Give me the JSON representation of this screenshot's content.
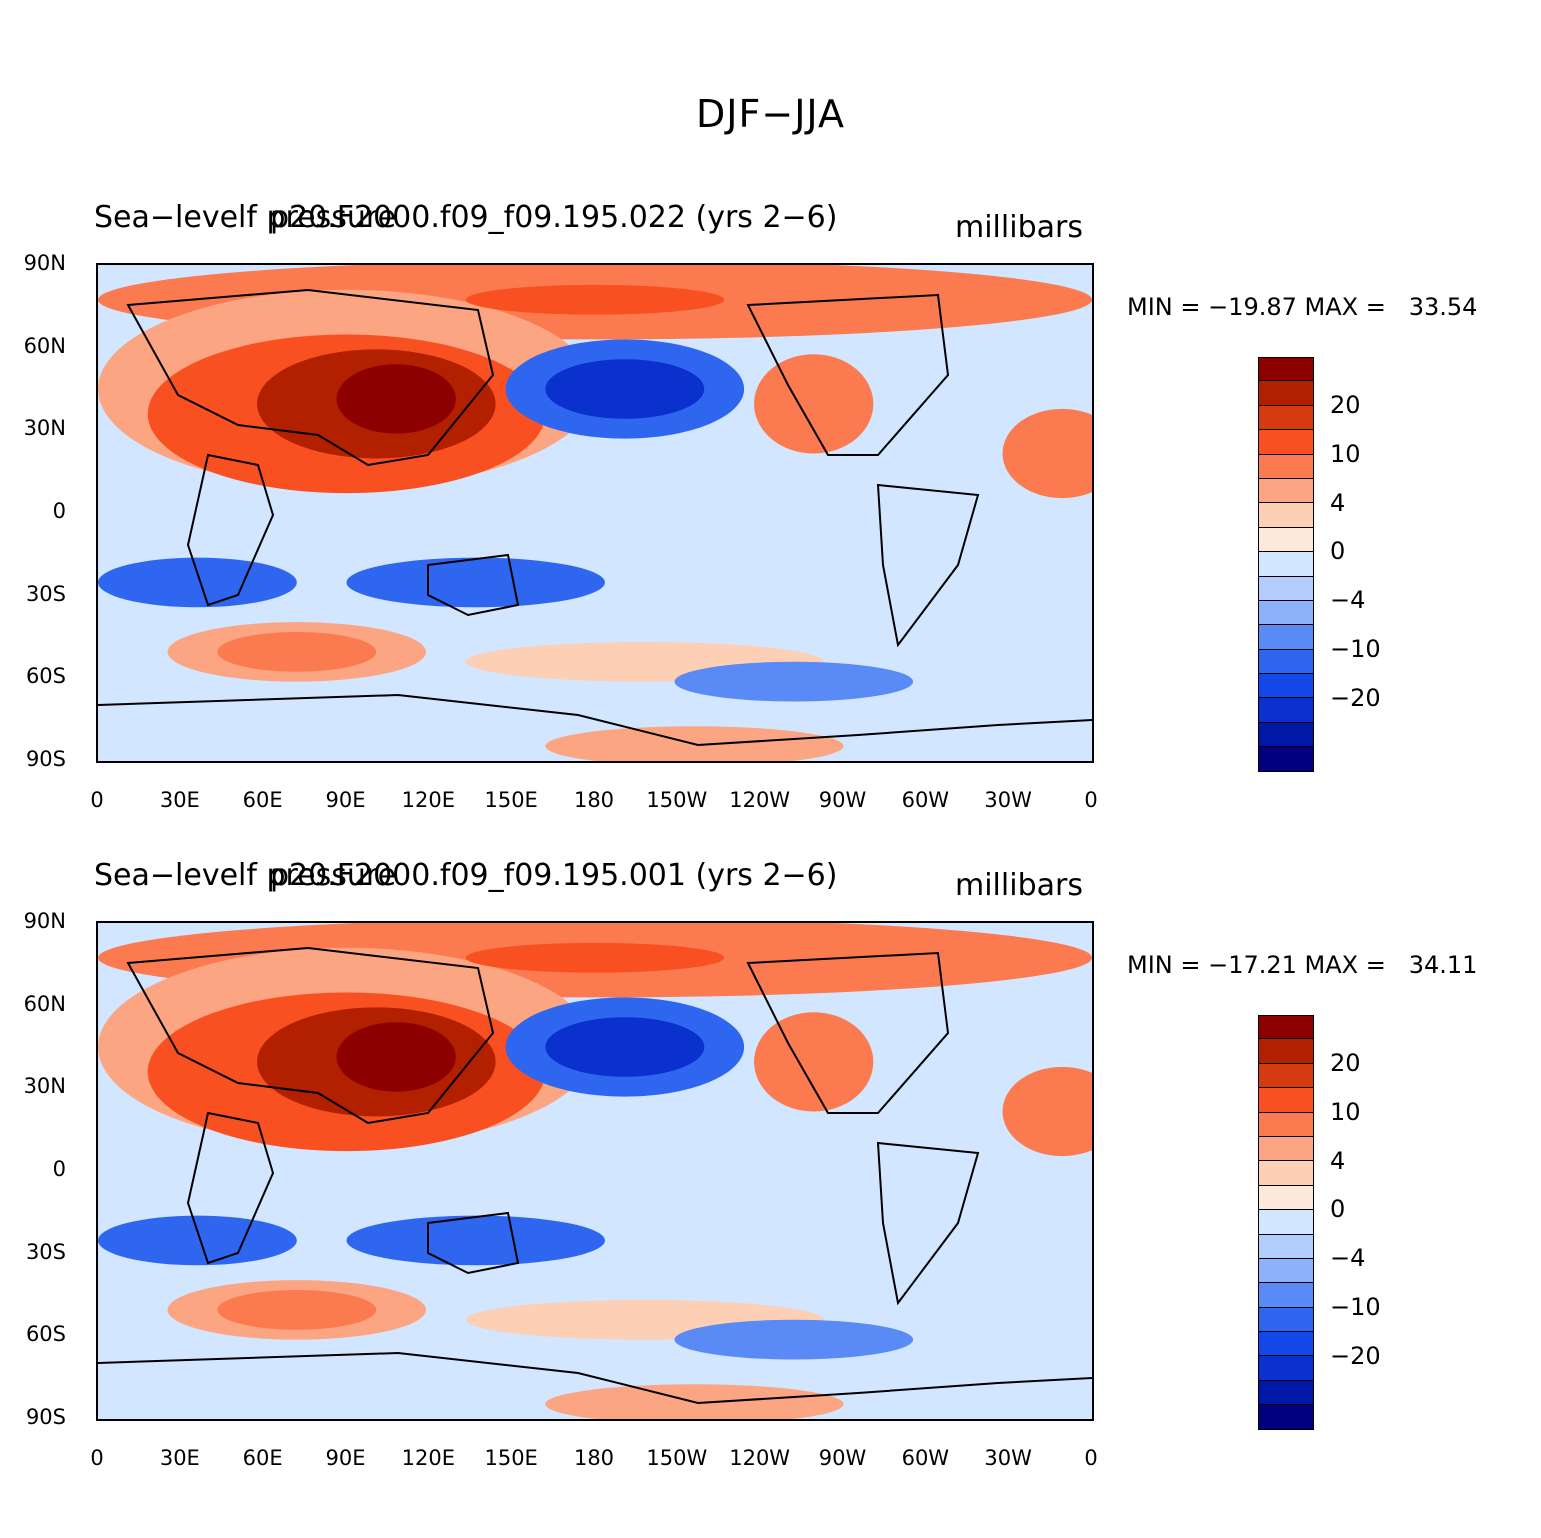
{
  "figure": {
    "title": "DJF−JJA"
  },
  "panels": [
    {
      "variable_label": "Sea−levelf pressure",
      "case_label": "p20.F2000.f09_f09.195.022 (yrs 2−6)",
      "units": "millibars",
      "minmax": "MIN = −19.87 MAX =   33.54"
    },
    {
      "variable_label": "Sea−levelf pressure",
      "case_label": "p20.F2000.f09_f09.195.001 (yrs 2−6)",
      "units": "millibars",
      "minmax": "MIN = −17.21 MAX =   34.11"
    }
  ],
  "axes": {
    "y_ticks": [
      "90N",
      "60N",
      "30N",
      "0",
      "30S",
      "60S",
      "90S"
    ],
    "x_ticks": [
      "0",
      "30E",
      "60E",
      "90E",
      "120E",
      "150E",
      "180",
      "150W",
      "120W",
      "90W",
      "60W",
      "30W",
      "0"
    ]
  },
  "colorbar": {
    "labels": [
      "20",
      "10",
      "4",
      "0",
      "−4",
      "−10",
      "−20"
    ],
    "colors": [
      "#8c0000",
      "#b22000",
      "#d63a10",
      "#f85020",
      "#fb7a50",
      "#fca582",
      "#fdcfb4",
      "#fde9dc",
      "#d2e6ff",
      "#b2cdfb",
      "#8cb2fa",
      "#5a8af5",
      "#2f66f0",
      "#1548e8",
      "#0a30cd",
      "#0018a8",
      "#000080"
    ]
  }
}
